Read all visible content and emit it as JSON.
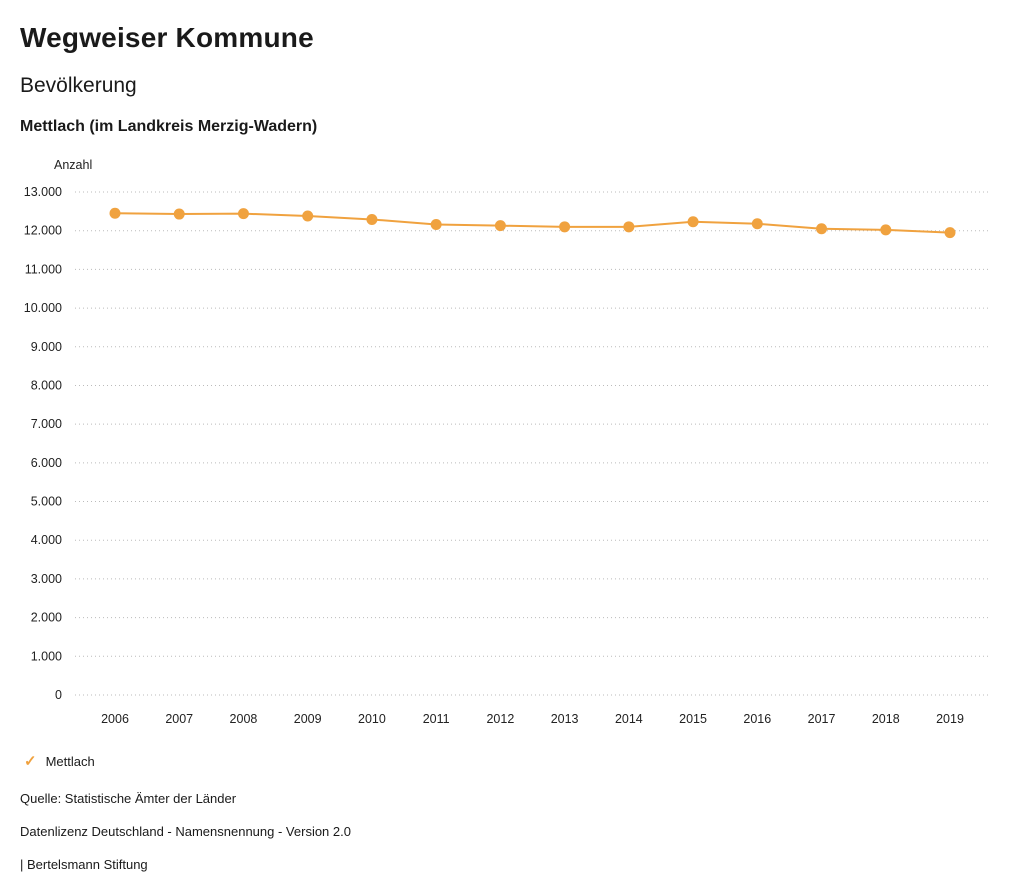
{
  "header": {
    "title": "Wegweiser Kommune",
    "subtitle": "Bevölkerung",
    "municipality": "Mettlach (im Landkreis Merzig-Wadern)"
  },
  "chart_data": {
    "type": "line",
    "title": "Bevölkerung — Mettlach (im Landkreis Merzig-Wadern)",
    "xlabel": "",
    "ylabel": "Anzahl",
    "categories": [
      "2006",
      "2007",
      "2008",
      "2009",
      "2010",
      "2011",
      "2012",
      "2013",
      "2014",
      "2015",
      "2016",
      "2017",
      "2018",
      "2019"
    ],
    "series": [
      {
        "name": "Mettlach",
        "color": "#f0a23f",
        "values": [
          12450,
          12430,
          12440,
          12380,
          12290,
          12160,
          12130,
          12100,
          12100,
          12230,
          12180,
          12050,
          12020,
          11950
        ]
      }
    ],
    "ylim": [
      0,
      13000
    ],
    "ytick_step": 1000,
    "grid": "dotted-horizontal",
    "legend_position": "bottom-left"
  },
  "legend": {
    "label": "Mettlach",
    "check_icon": "✓",
    "check_color": "#f0a23f"
  },
  "footer": {
    "source": "Quelle: Statistische Ämter der Länder",
    "license": "Datenlizenz Deutschland - Namensnennung - Version 2.0",
    "attribution": "| Bertelsmann Stiftung"
  },
  "colors": {
    "accent": "#f0a23f",
    "gridline": "#bbbbbb",
    "text": "#1a1a1a"
  }
}
